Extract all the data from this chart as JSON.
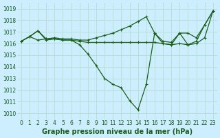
{
  "title": "Graphe pression niveau de la mer (hPa)",
  "bg_color": "#cceeff",
  "grid_color": "#b8ddd0",
  "line_color": "#1a5e1a",
  "marker": "+",
  "series": [
    [
      1016.2,
      1016.6,
      1017.1,
      1016.3,
      1016.4,
      1016.3,
      1016.3,
      1015.9,
      1015.1,
      1014.1,
      1013.0,
      1012.5,
      1012.2,
      1011.1,
      1010.3,
      1012.5,
      1016.9,
      1016.0,
      1015.9,
      1016.9,
      1015.9,
      1016.2,
      1017.6,
      1018.8
    ],
    [
      1016.2,
      1016.6,
      1016.3,
      1016.4,
      1016.4,
      1016.3,
      1016.3,
      1016.2,
      1016.1,
      1016.1,
      1016.1,
      1016.1,
      1016.1,
      1016.1,
      1016.1,
      1016.1,
      1016.1,
      1016.0,
      1015.9,
      1016.0,
      1015.9,
      1016.0,
      1016.5,
      1018.8
    ],
    [
      1016.2,
      1016.6,
      1017.1,
      1016.4,
      1016.5,
      1016.4,
      1016.4,
      1016.3,
      1016.3,
      1016.5,
      1016.7,
      1016.9,
      1017.2,
      1017.5,
      1017.9,
      1018.3,
      1016.9,
      1016.2,
      1016.1,
      1016.9,
      1016.9,
      1016.5,
      1017.6,
      1018.8
    ]
  ],
  "xlim": [
    -0.5,
    23.5
  ],
  "ylim": [
    1009.5,
    1019.5
  ],
  "xticks": [
    0,
    1,
    2,
    3,
    4,
    5,
    6,
    7,
    8,
    9,
    10,
    11,
    12,
    13,
    14,
    15,
    16,
    17,
    18,
    19,
    20,
    21,
    22,
    23
  ],
  "yticks": [
    1010,
    1011,
    1012,
    1013,
    1014,
    1015,
    1016,
    1017,
    1018,
    1019
  ],
  "title_fontsize": 7.0,
  "tick_fontsize": 5.5
}
